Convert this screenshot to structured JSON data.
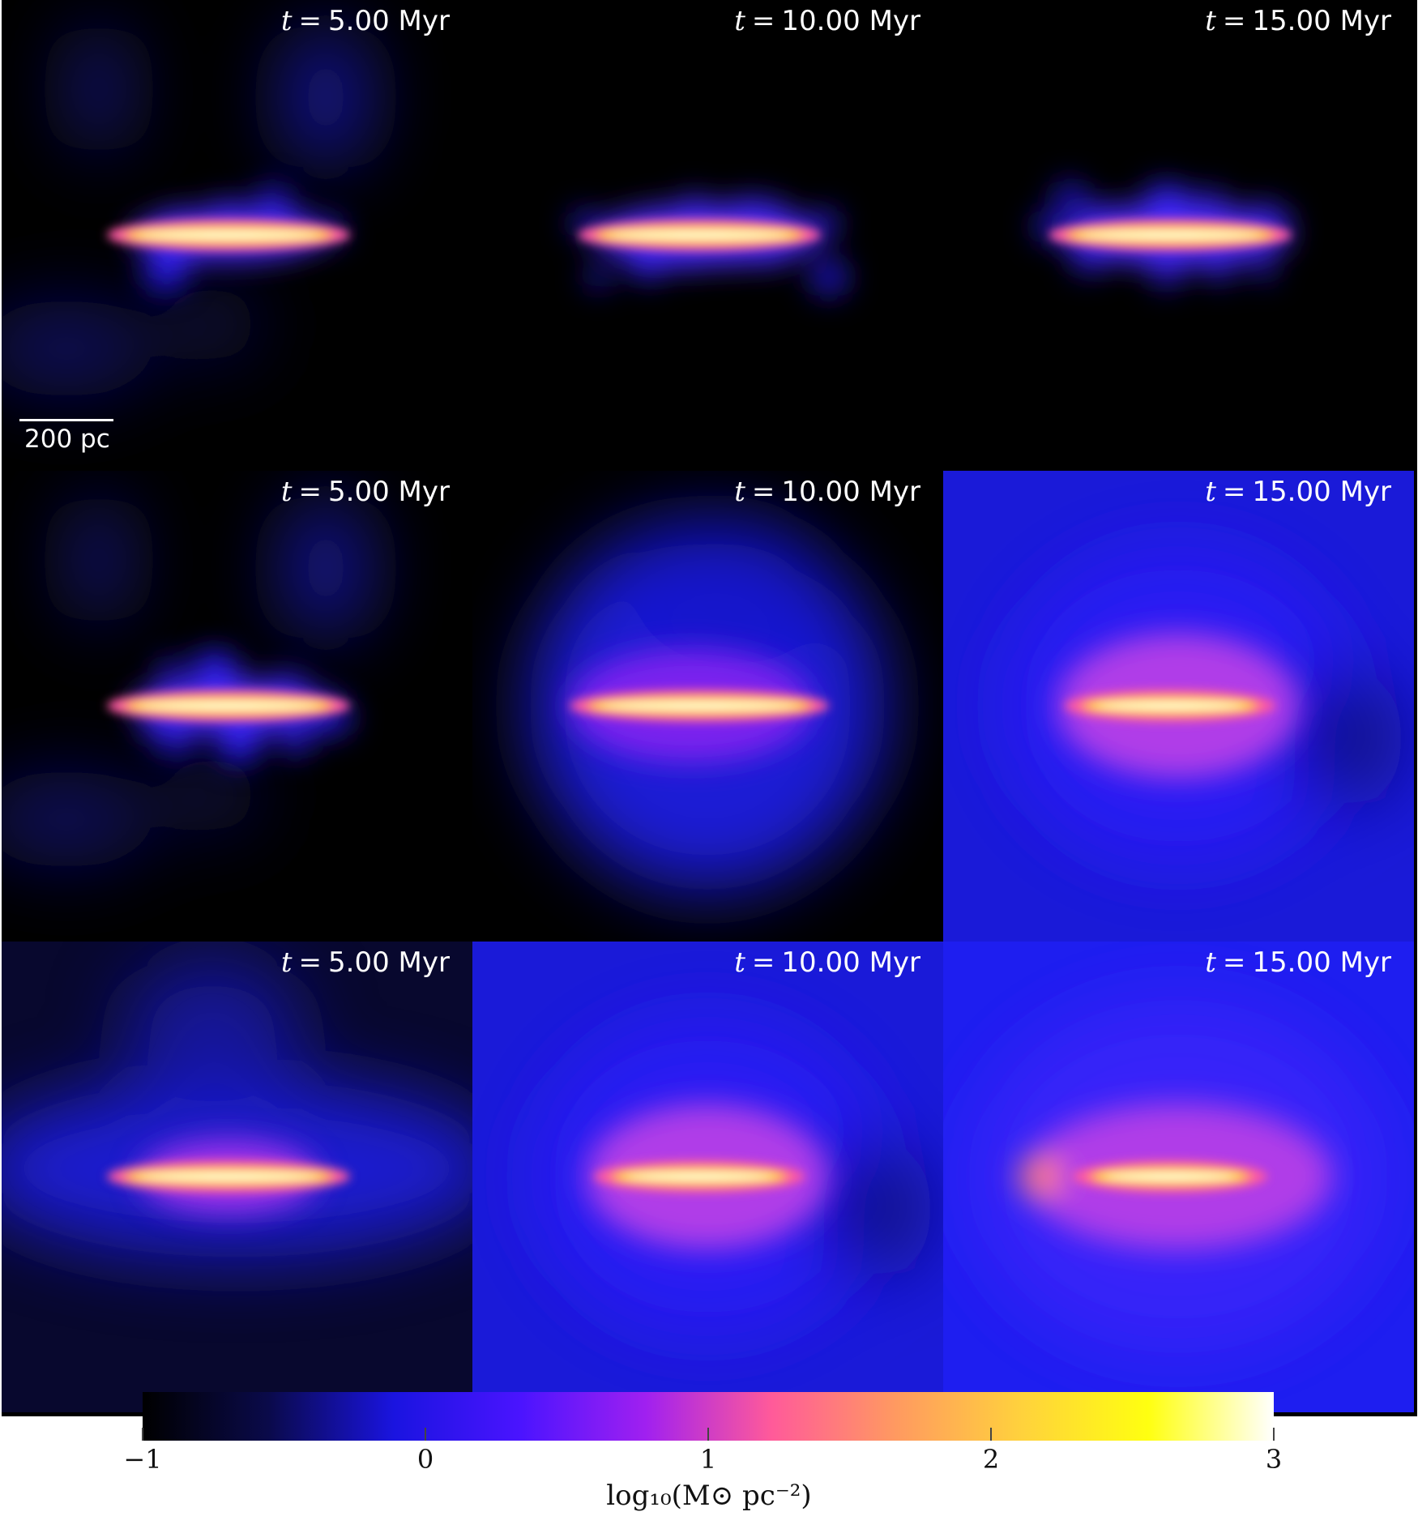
{
  "panels": [
    {
      "row": 1,
      "col": 1,
      "time": "5.00 Myr",
      "state": "compact-dim-outflow"
    },
    {
      "row": 1,
      "col": 2,
      "time": "10.00 Myr",
      "state": "compact"
    },
    {
      "row": 1,
      "col": 3,
      "time": "15.00 Myr",
      "state": "compact"
    },
    {
      "row": 2,
      "col": 1,
      "time": "5.00 Myr",
      "state": "compact-dim-outflow"
    },
    {
      "row": 2,
      "col": 2,
      "time": "10.00 Myr",
      "state": "halo"
    },
    {
      "row": 2,
      "col": 3,
      "time": "15.00 Myr",
      "state": "filled"
    },
    {
      "row": 3,
      "col": 1,
      "time": "5.00 Myr",
      "state": "filled-side"
    },
    {
      "row": 3,
      "col": 2,
      "time": "10.00 Myr",
      "state": "filled"
    },
    {
      "row": 3,
      "col": 3,
      "time": "15.00 Myr",
      "state": "filled-bright"
    }
  ],
  "time_symbol": "t",
  "equals_symbol": "=",
  "scale_bar": {
    "label": "200 pc"
  },
  "colorbar": {
    "label": "log₁₀(M⊙ pc⁻²)",
    "range": [
      -1,
      3
    ],
    "ticks": [
      {
        "value": -1,
        "label": "−1"
      },
      {
        "value": 0,
        "label": "0"
      },
      {
        "value": 1,
        "label": "1"
      },
      {
        "value": 2,
        "label": "2"
      },
      {
        "value": 3,
        "label": "3"
      }
    ],
    "colormap_stops": [
      "#000000",
      "#0a0a4a",
      "#1a14e0",
      "#4a14ff",
      "#a020f0",
      "#ff5a9a",
      "#ff9a60",
      "#ffd23c",
      "#ffff10",
      "#ffffff"
    ]
  }
}
